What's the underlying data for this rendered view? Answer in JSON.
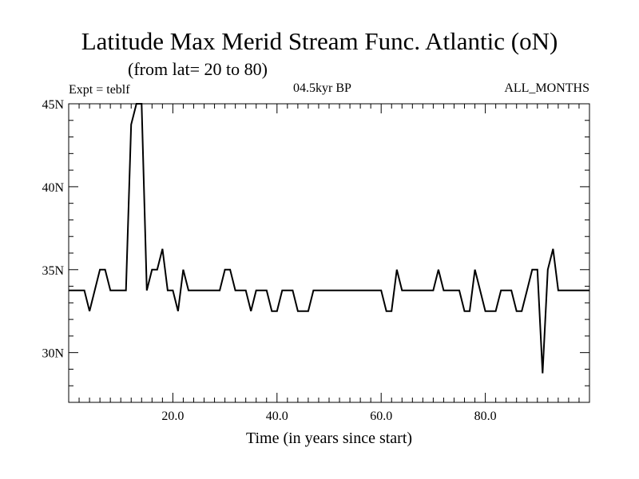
{
  "title": "Latitude Max Merid Stream Func. Atlantic (oN)",
  "subtitle": "(from lat= 20 to 80)",
  "expt_label": "Expt = teblf",
  "period_label": "04.5kyr BP",
  "months_label": "ALL_MONTHS",
  "colors": {
    "line": "#000000",
    "axis": "#000000",
    "background": "#ffffff"
  },
  "chart_data": {
    "type": "line",
    "title": "Latitude Max Merid Stream Func. Atlantic (oN)",
    "xlabel": "Time (in years since start)",
    "ylabel": "",
    "xlim": [
      0,
      100
    ],
    "ylim": [
      27,
      45
    ],
    "xticks": [
      {
        "value": 20,
        "label": "20.0"
      },
      {
        "value": 40,
        "label": "40.0"
      },
      {
        "value": 60,
        "label": "60.0"
      },
      {
        "value": 80,
        "label": "80.0"
      }
    ],
    "yticks": [
      {
        "value": 30,
        "label": "30N"
      },
      {
        "value": 35,
        "label": "35N"
      },
      {
        "value": 40,
        "label": "40N"
      },
      {
        "value": 45,
        "label": "45N"
      }
    ],
    "series": [
      {
        "name": "teblf",
        "x": [
          0,
          1,
          2,
          3,
          4,
          5,
          6,
          7,
          8,
          9,
          10,
          11,
          12,
          13,
          14,
          15,
          16,
          17,
          18,
          19,
          20,
          21,
          22,
          23,
          24,
          25,
          26,
          27,
          28,
          29,
          30,
          31,
          32,
          33,
          34,
          35,
          36,
          37,
          38,
          39,
          40,
          41,
          42,
          43,
          44,
          45,
          46,
          47,
          48,
          49,
          50,
          51,
          52,
          53,
          54,
          55,
          56,
          57,
          58,
          59,
          60,
          61,
          62,
          63,
          64,
          65,
          66,
          67,
          68,
          69,
          70,
          71,
          72,
          73,
          74,
          75,
          76,
          77,
          78,
          79,
          80,
          81,
          82,
          83,
          84,
          85,
          86,
          87,
          88,
          89,
          90,
          91,
          92,
          93,
          94,
          95,
          96,
          97,
          98,
          99,
          100
        ],
        "y": [
          33.75,
          33.75,
          33.75,
          33.75,
          32.5,
          33.75,
          35,
          35,
          33.75,
          33.75,
          33.75,
          33.75,
          43.75,
          45,
          45,
          33.75,
          35,
          35,
          36.25,
          33.75,
          33.75,
          32.5,
          35,
          33.75,
          33.75,
          33.75,
          33.75,
          33.75,
          33.75,
          33.75,
          35,
          35,
          33.75,
          33.75,
          33.75,
          32.5,
          33.75,
          33.75,
          33.75,
          32.5,
          32.5,
          33.75,
          33.75,
          33.75,
          32.5,
          32.5,
          32.5,
          33.75,
          33.75,
          33.75,
          33.75,
          33.75,
          33.75,
          33.75,
          33.75,
          33.75,
          33.75,
          33.75,
          33.75,
          33.75,
          33.75,
          32.5,
          32.5,
          35,
          33.75,
          33.75,
          33.75,
          33.75,
          33.75,
          33.75,
          33.75,
          35,
          33.75,
          33.75,
          33.75,
          33.75,
          32.5,
          32.5,
          35,
          33.75,
          32.5,
          32.5,
          32.5,
          33.75,
          33.75,
          33.75,
          32.5,
          32.5,
          33.75,
          35,
          35,
          28.75,
          35,
          36.25,
          33.75,
          33.75,
          33.75,
          33.75,
          33.75,
          33.75,
          33.75
        ]
      }
    ]
  }
}
